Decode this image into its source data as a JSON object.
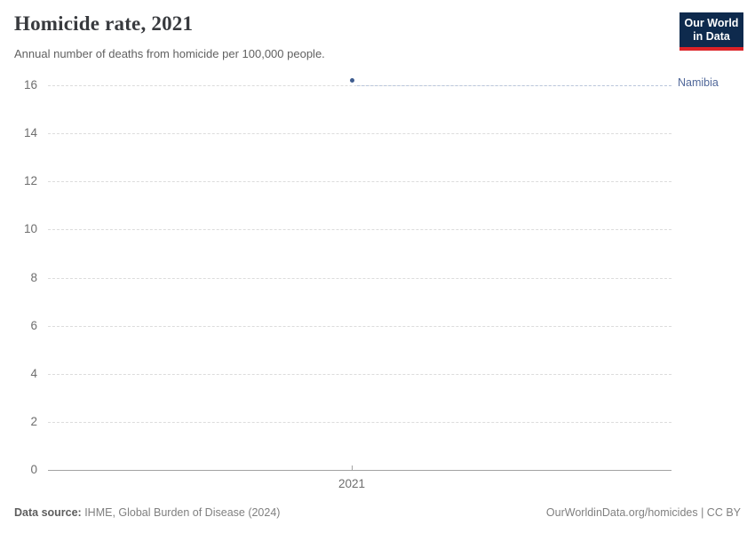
{
  "header": {
    "title": "Homicide rate, 2021",
    "subtitle": "Annual number of deaths from homicide per 100,000 people.",
    "logo": {
      "line1": "Our World",
      "line2": "in Data"
    }
  },
  "chart_data": {
    "type": "scatter",
    "title": "Homicide rate, 2021",
    "subtitle": "Annual number of deaths from homicide per 100,000 people.",
    "series": [
      {
        "name": "Namibia",
        "x": [
          2021
        ],
        "values": [
          16.2
        ],
        "point_color": "#3e5c8f",
        "label_color": "#51689a"
      }
    ],
    "xticks": [
      "2021"
    ],
    "yticks": [
      0,
      2,
      4,
      6,
      8,
      10,
      12,
      14,
      16
    ],
    "ylim": [
      0,
      16.5
    ],
    "xlabel": "",
    "ylabel": "",
    "grid": "horizontal-dashed",
    "legend": "entity-label-right"
  },
  "footer": {
    "source_label": "Data source:",
    "source_text": " IHME, Global Burden of Disease (2024)",
    "credit": "OurWorldinData.org/homicides | CC BY"
  },
  "colors": {
    "background": "#ffffff",
    "gridline": "#dcdcdc",
    "axis": "#a3a3a3",
    "tick_text": "#6e6e6e",
    "logo_navy": "#0e2a4d",
    "logo_red": "#dc2227",
    "accent_point": "#3e5c8f",
    "accent_label": "#51689a"
  }
}
